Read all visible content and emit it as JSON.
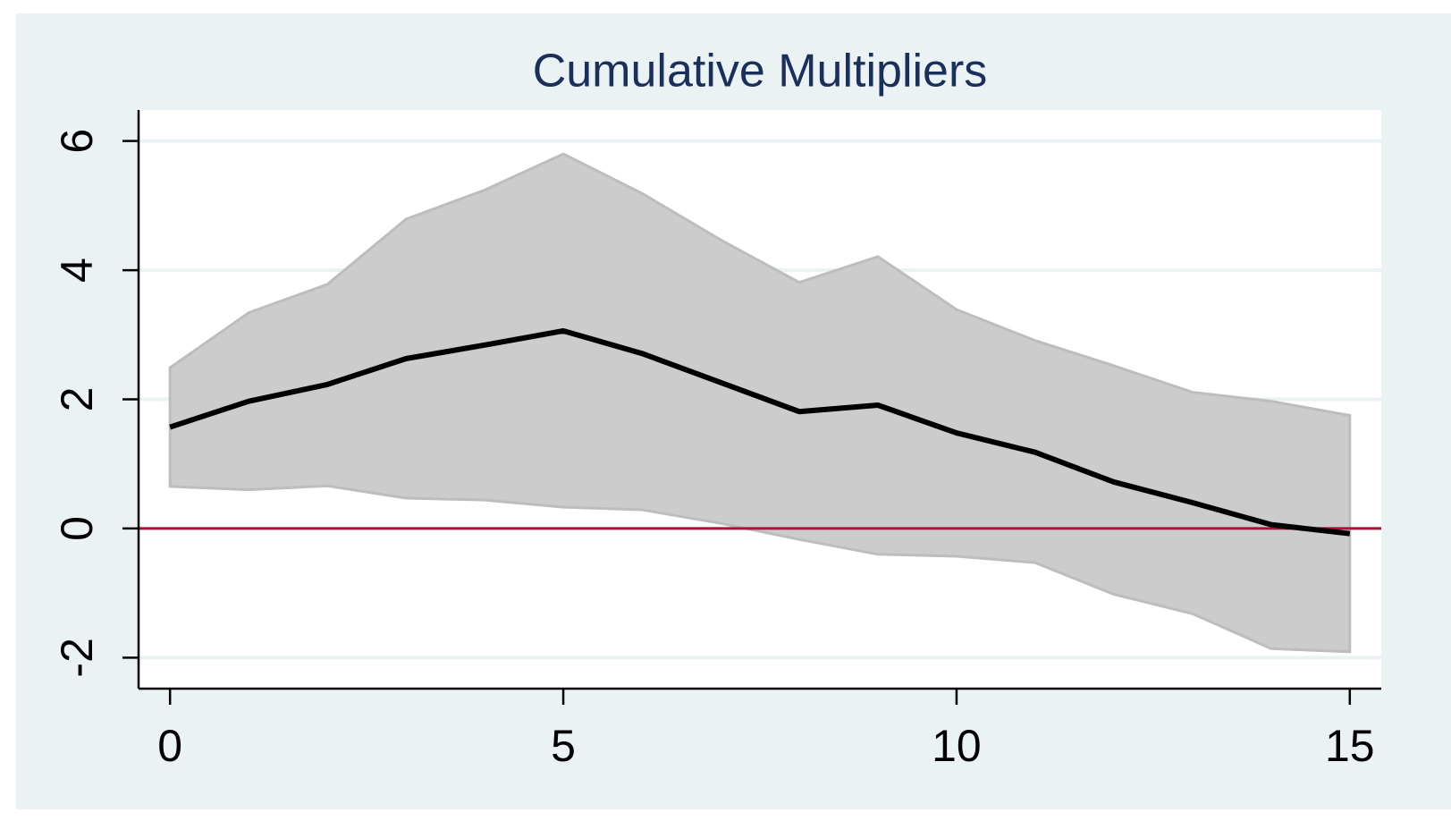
{
  "chart_data": {
    "type": "line",
    "title": "Cumulative Multipliers",
    "x": [
      0,
      1,
      2,
      3,
      4,
      5,
      6,
      7,
      8,
      9,
      10,
      11,
      12,
      13,
      14,
      15
    ],
    "values": [
      1.57,
      1.97,
      2.23,
      2.63,
      2.84,
      3.06,
      2.71,
      2.26,
      1.81,
      1.91,
      1.48,
      1.18,
      0.72,
      0.4,
      0.06,
      -0.08
    ],
    "upper": [
      2.49,
      3.34,
      3.78,
      4.79,
      5.24,
      5.8,
      5.19,
      4.47,
      3.81,
      4.21,
      3.39,
      2.91,
      2.52,
      2.11,
      1.97,
      1.75
    ],
    "lower": [
      0.65,
      0.6,
      0.66,
      0.47,
      0.44,
      0.33,
      0.29,
      0.08,
      -0.17,
      -0.4,
      -0.43,
      -0.53,
      -1.02,
      -1.32,
      -1.86,
      -1.91
    ],
    "color": "#000000",
    "band_color": "#cccccc",
    "reference_line": {
      "value": 0,
      "color": "#b0103a"
    },
    "xlim": [
      -0.4,
      15.4
    ],
    "xticks": [
      0,
      5,
      10,
      15
    ],
    "ylim": [
      -2.48,
      6.48
    ],
    "yticks": [
      -2,
      0,
      2,
      4,
      6
    ],
    "grid": true
  }
}
